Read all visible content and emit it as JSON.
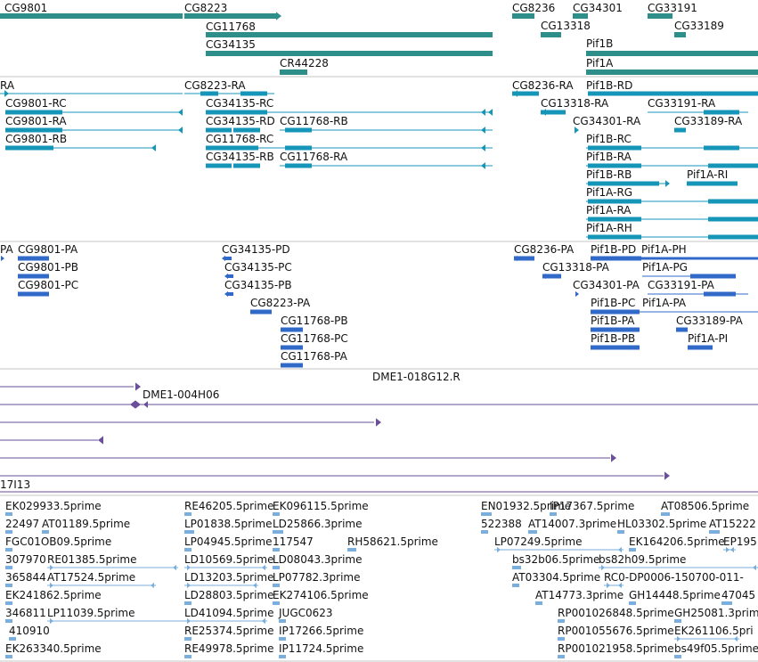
{
  "viewer": {
    "colors": {
      "gene": "#2e8f8a",
      "transcript": "#1596b8",
      "protein": "#3069c8",
      "clone": "#6b4f9a",
      "est": "#7aaedc",
      "divider": "#c4c4c4"
    },
    "tracks": [
      {
        "name": "genes",
        "label_texts": [
          "CG9801",
          "CG8223",
          "CG11768",
          "CG34135",
          "CR44228",
          "CG8236",
          "CG34301",
          "CG33191",
          "CG13318",
          "CG33189",
          "Pif1B",
          "Pif1A"
        ]
      },
      {
        "name": "transcripts",
        "label_texts": [
          "RA",
          "CG8223-RA",
          "CG8236-RA",
          "Pif1B-RD",
          "CG9801-RC",
          "CG34135-RC",
          "CG13318-RA",
          "CG33191-RA",
          "CG9801-RA",
          "CG34135-RD",
          "CG11768-RB",
          "CG34301-RA",
          "CG33189-RA",
          "CG9801-RB",
          "CG11768-RC",
          "Pif1B-RC",
          "CG34135-RB",
          "CG11768-RA",
          "Pif1B-RA",
          "Pif1B-RB",
          "Pif1A-RI",
          "Pif1A-RG",
          "Pif1A-RA",
          "Pif1A-RH"
        ]
      },
      {
        "name": "proteins",
        "label_texts": [
          "PA",
          "CG9801-PA",
          "CG34135-PD",
          "CG8236-PA",
          "Pif1B-PD",
          "Pif1A-PH",
          "CG9801-PB",
          "CG34135-PC",
          "CG13318-PA",
          "Pif1A-PG",
          "CG9801-PC",
          "CG34135-PB",
          "CG34301-PA",
          "CG33191-PA",
          "CG8223-PA",
          "Pif1B-PC",
          "Pif1A-PA",
          "CG11768-PB",
          "Pif1B-PA",
          "CG33189-PA",
          "CG11768-PC",
          "Pif1B-PB",
          "Pif1A-PI",
          "CG11768-PA"
        ]
      },
      {
        "name": "clones",
        "label_texts": [
          "DME1-018G12.R",
          "DME1-004H06",
          "17I13"
        ]
      },
      {
        "name": "ests",
        "label_texts": [
          "EK029933.5prime",
          "RE46205.5prime",
          "EK096115.5prime",
          "EN01932.5prime",
          "IP17367.5prime",
          "AT08506.5prime",
          "22497",
          "AT01189.5prime",
          "LP01838.5prime",
          "LD25866.3prime",
          "522388",
          "AT14007.3prime",
          "HL03302.5prime",
          "AT15222",
          "FGC01OB09.5prime",
          "LP04945.5prime",
          "117547",
          "RH58621.5prime",
          "LP07249.5prime",
          "EK164206.5prime",
          "EP195",
          "307970",
          "RE01385.5prime",
          "LD10569.5prime",
          "LD08043.3prime",
          "bs32b06.5prime",
          "bs82h09.5prime",
          "365844",
          "AT17524.5prime",
          "LD13203.5prime",
          "LP07782.3prime",
          "AT03304.5prime",
          "RC0-DP0006-150700-011-",
          "EK241862.5prime",
          "LD28803.5prime",
          "EK274106.5prime",
          "AT14773.3prime",
          "GH14448.5prime",
          "47045",
          "346811",
          "LP11039.5prime",
          "LD41094.5prime",
          "JUGC0623",
          "RP001026848.5prime",
          "GH25081.3prime",
          "410910",
          "RE25374.5prime",
          "IP17266.5prime",
          "RP001055676.5prime",
          "EK261106.5pri",
          "EK263340.5prime",
          "RE49978.5prime",
          "IP11724.5prime",
          "RP001021958.5prime",
          "bs49f05.5prime"
        ]
      }
    ]
  }
}
